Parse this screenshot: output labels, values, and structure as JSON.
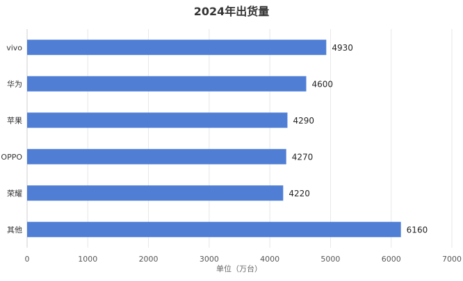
{
  "chart_data": {
    "type": "bar",
    "orientation": "horizontal",
    "title": "2024年出货量",
    "xlabel": "单位（万台）",
    "ylabel": "",
    "categories": [
      "vivo",
      "华为",
      "苹果",
      "OPPO",
      "荣耀",
      "其他"
    ],
    "values": [
      4930,
      4600,
      4290,
      4270,
      4220,
      6160
    ],
    "xlim": [
      0,
      7000
    ],
    "xticks": [
      "0",
      "1000",
      "2000",
      "3000",
      "4000",
      "5000",
      "6000",
      "7000"
    ],
    "grid": "vertical",
    "bar_color": "#4F7ED4",
    "show_data_labels": true
  }
}
